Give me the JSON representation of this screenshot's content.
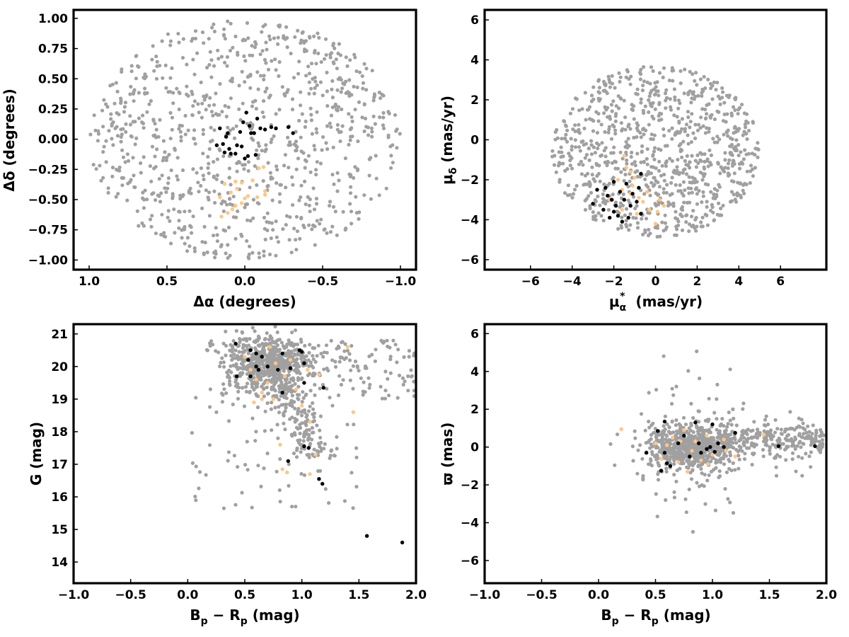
{
  "colors": {
    "field": "#a0a0a0",
    "black_group": "#000000",
    "orange_group": "#ffc685",
    "frame": "#000000"
  },
  "chart_data": [
    {
      "id": "sky",
      "type": "scatter",
      "xlabel": "Δα (degrees)",
      "ylabel": "Δδ (degrees)",
      "xlim": [
        1.1,
        -1.1
      ],
      "ylim": [
        -1.08,
        1.07
      ],
      "x_reversed": true,
      "xticks": [
        {
          "v": 1.0,
          "label": "1.0"
        },
        {
          "v": 0.5,
          "label": "0.5"
        },
        {
          "v": 0.0,
          "label": "0.0"
        },
        {
          "v": -0.5,
          "label": "−0.5"
        },
        {
          "v": -1.0,
          "label": "−1.0"
        }
      ],
      "yticks": [
        {
          "v": 1.0,
          "label": "1.00"
        },
        {
          "v": 0.75,
          "label": "0.75"
        },
        {
          "v": 0.5,
          "label": "0.50"
        },
        {
          "v": 0.25,
          "label": "0.25"
        },
        {
          "v": 0.0,
          "label": "0.00"
        },
        {
          "v": -0.25,
          "label": "−0.25"
        },
        {
          "v": -0.5,
          "label": "−0.50"
        },
        {
          "v": -0.75,
          "label": "−0.75"
        },
        {
          "v": -1.0,
          "label": "−1.00"
        }
      ],
      "field_distribution": {
        "shape": "disk",
        "center": [
          0.0,
          0.0
        ],
        "radius": [
          1.0,
          1.0
        ],
        "count": 900
      },
      "series": [
        {
          "group": "black",
          "points": [
            [
              0.16,
              0.09
            ],
            [
              0.12,
              0.02
            ],
            [
              0.14,
              -0.04
            ],
            [
              0.1,
              -0.08
            ],
            [
              0.13,
              -0.11
            ],
            [
              0.09,
              -0.12
            ],
            [
              0.05,
              -0.05
            ],
            [
              0.03,
              0.06
            ],
            [
              0.01,
              0.14
            ],
            [
              -0.01,
              0.22
            ],
            [
              -0.03,
              0.11
            ],
            [
              -0.06,
              0.05
            ],
            [
              -0.08,
              0.17
            ],
            [
              -0.1,
              0.09
            ],
            [
              -0.13,
              0.08
            ],
            [
              -0.17,
              0.1
            ],
            [
              -0.2,
              0.09
            ],
            [
              -0.28,
              0.1
            ],
            [
              -0.31,
              0.05
            ],
            [
              0.02,
              -0.06
            ],
            [
              -0.02,
              -0.14
            ],
            [
              0.0,
              -0.16
            ],
            [
              0.06,
              -0.12
            ],
            [
              0.18,
              -0.05
            ],
            [
              0.11,
              0.05
            ],
            [
              -0.04,
              0.05
            ],
            [
              -0.07,
              -0.13
            ]
          ]
        },
        {
          "group": "orange",
          "points": [
            [
              -0.12,
              -0.23
            ],
            [
              -0.05,
              -0.34
            ],
            [
              0.02,
              -0.36
            ],
            [
              0.05,
              -0.41
            ],
            [
              -0.13,
              -0.43
            ],
            [
              -0.13,
              -0.46
            ],
            [
              -0.08,
              -0.48
            ],
            [
              0.0,
              -0.49
            ],
            [
              0.02,
              -0.53
            ],
            [
              0.06,
              -0.55
            ],
            [
              0.08,
              -0.58
            ],
            [
              0.11,
              -0.61
            ],
            [
              0.15,
              -0.64
            ],
            [
              0.06,
              -0.35
            ],
            [
              0.13,
              -0.37
            ],
            [
              0.16,
              -0.48
            ],
            [
              -0.09,
              -0.24
            ],
            [
              0.09,
              -0.44
            ],
            [
              -0.02,
              -0.47
            ]
          ]
        }
      ]
    },
    {
      "id": "pm",
      "type": "scatter",
      "xlabel_main": "μ",
      "xlabel_sub": "α",
      "xlabel_sup": "*",
      "xlabel_rest": "(mas/yr)",
      "ylabel_main": "μ",
      "ylabel_sub": "δ",
      "ylabel_rest": "(mas/yr)",
      "xlim": [
        -8.2,
        8.2
      ],
      "ylim": [
        -6.5,
        6.5
      ],
      "xticks": [
        {
          "v": -6,
          "label": "−6"
        },
        {
          "v": -4,
          "label": "−4"
        },
        {
          "v": -2,
          "label": "−2"
        },
        {
          "v": 0,
          "label": "0"
        },
        {
          "v": 2,
          "label": "2"
        },
        {
          "v": 4,
          "label": "4"
        },
        {
          "v": 6,
          "label": "6"
        }
      ],
      "yticks": [
        {
          "v": 6,
          "label": "6"
        },
        {
          "v": 4,
          "label": "4"
        },
        {
          "v": 2,
          "label": "2"
        },
        {
          "v": 0,
          "label": "0"
        },
        {
          "v": -2,
          "label": "−2"
        },
        {
          "v": -4,
          "label": "−4"
        },
        {
          "v": -6,
          "label": "−6"
        }
      ],
      "field_distribution": {
        "shape": "disk",
        "center": [
          0.0,
          -0.6
        ],
        "radius": [
          5.0,
          4.3
        ],
        "count": 900
      },
      "series": [
        {
          "group": "black",
          "points": [
            [
              -3.0,
              -3.2
            ],
            [
              -2.8,
              -2.5
            ],
            [
              -2.5,
              -3.5
            ],
            [
              -2.3,
              -2.8
            ],
            [
              -2.2,
              -3.9
            ],
            [
              -2.0,
              -2.1
            ],
            [
              -2.0,
              -3.6
            ],
            [
              -1.8,
              -3.8
            ],
            [
              -1.7,
              -2.6
            ],
            [
              -1.6,
              -4.1
            ],
            [
              -1.5,
              -3.0
            ],
            [
              -1.4,
              -2.2
            ],
            [
              -1.2,
              -3.3
            ],
            [
              -1.1,
              -2.7
            ],
            [
              -0.9,
              -3.1
            ],
            [
              -0.8,
              -2.4
            ],
            [
              -0.7,
              -1.7
            ],
            [
              -0.7,
              -3.7
            ],
            [
              -2.4,
              -2.4
            ],
            [
              -1.9,
              -3.3
            ],
            [
              -1.3,
              -3.9
            ],
            [
              -2.1,
              -3.0
            ]
          ]
        },
        {
          "group": "orange",
          "points": [
            [
              -1.5,
              -0.8
            ],
            [
              -1.4,
              -1.4
            ],
            [
              -1.2,
              -1.6
            ],
            [
              -1.0,
              -1.9
            ],
            [
              -1.6,
              -2.5
            ],
            [
              -1.2,
              -2.7
            ],
            [
              -0.8,
              -2.9
            ],
            [
              -0.6,
              -3.1
            ],
            [
              -0.3,
              -3.5
            ],
            [
              0.0,
              -4.2
            ],
            [
              0.2,
              -3.0
            ],
            [
              0.4,
              -3.3
            ],
            [
              -0.9,
              -3.7
            ],
            [
              -1.8,
              -2.0
            ],
            [
              -1.6,
              -3.5
            ],
            [
              -2.2,
              -3.0
            ],
            [
              -0.4,
              -2.6
            ],
            [
              0.1,
              -3.6
            ],
            [
              -1.1,
              -2.3
            ]
          ]
        }
      ]
    },
    {
      "id": "cmd",
      "type": "scatter",
      "xlabel_main": "B",
      "xlabel_sub": "p",
      "xlabel_mid": " − R",
      "xlabel_sub2": "p",
      "xlabel_rest": " (mag)",
      "ylabel": "G (mag)",
      "xlim": [
        -1.0,
        2.0
      ],
      "ylim": [
        13.35,
        21.3
      ],
      "y_reversed": true,
      "xticks": [
        {
          "v": -1.0,
          "label": "−1.0"
        },
        {
          "v": -0.5,
          "label": "−0.5"
        },
        {
          "v": 0.0,
          "label": "0.0"
        },
        {
          "v": 0.5,
          "label": "0.5"
        },
        {
          "v": 1.0,
          "label": "1.0"
        },
        {
          "v": 1.5,
          "label": "1.5"
        },
        {
          "v": 2.0,
          "label": "2.0"
        }
      ],
      "yticks": [
        {
          "v": 21,
          "label": "21"
        },
        {
          "v": 20,
          "label": "20"
        },
        {
          "v": 19,
          "label": "19"
        },
        {
          "v": 18,
          "label": "18"
        },
        {
          "v": 17,
          "label": "17"
        },
        {
          "v": 16,
          "label": "16"
        },
        {
          "v": 15,
          "label": "15"
        },
        {
          "v": 14,
          "label": "14"
        }
      ],
      "field_distribution": {
        "shape": "cmd",
        "count": 1000
      },
      "series": [
        {
          "group": "black",
          "points": [
            [
              0.42,
              20.7
            ],
            [
              0.55,
              20.5
            ],
            [
              0.6,
              20.4
            ],
            [
              0.65,
              20.3
            ],
            [
              0.53,
              20.2
            ],
            [
              0.6,
              20.0
            ],
            [
              0.62,
              19.9
            ],
            [
              0.55,
              19.7
            ],
            [
              0.7,
              20.0
            ],
            [
              0.79,
              19.9
            ],
            [
              0.83,
              20.4
            ],
            [
              0.9,
              19.95
            ],
            [
              0.98,
              20.5
            ],
            [
              1.0,
              20.45
            ],
            [
              1.02,
              20.1
            ],
            [
              1.02,
              19.5
            ],
            [
              0.83,
              19.2
            ],
            [
              0.43,
              19.7
            ],
            [
              1.19,
              19.35
            ],
            [
              0.88,
              17.1
            ],
            [
              1.02,
              17.55
            ],
            [
              1.06,
              17.5
            ],
            [
              1.15,
              16.55
            ],
            [
              1.18,
              16.4
            ],
            [
              1.57,
              14.8
            ],
            [
              1.88,
              14.6
            ]
          ]
        },
        {
          "group": "orange",
          "points": [
            [
              0.5,
              20.3
            ],
            [
              0.55,
              19.9
            ],
            [
              0.6,
              19.6
            ],
            [
              0.65,
              19.2
            ],
            [
              0.7,
              19.5
            ],
            [
              0.72,
              20.6
            ],
            [
              0.75,
              19.0
            ],
            [
              0.77,
              20.1
            ],
            [
              0.85,
              19.7
            ],
            [
              0.9,
              20.2
            ],
            [
              0.95,
              19.3
            ],
            [
              1.0,
              18.8
            ],
            [
              1.05,
              19.9
            ],
            [
              1.15,
              19.75
            ],
            [
              1.4,
              20.6
            ],
            [
              1.45,
              18.6
            ],
            [
              0.81,
              17.6
            ],
            [
              0.83,
              16.85
            ],
            [
              0.87,
              16.75
            ],
            [
              1.07,
              16.7
            ],
            [
              1.07,
              18.3
            ],
            [
              1.12,
              17.3
            ],
            [
              0.65,
              19.0
            ],
            [
              0.58,
              18.9
            ]
          ]
        }
      ]
    },
    {
      "id": "plx",
      "type": "scatter",
      "xlabel_main": "B",
      "xlabel_sub": "p",
      "xlabel_mid": " − R",
      "xlabel_sub2": "p",
      "xlabel_rest": " (mag)",
      "ylabel": "ϖ (mas)",
      "xlim": [
        -1.0,
        2.0
      ],
      "ylim": [
        -7.2,
        6.5
      ],
      "xticks": [
        {
          "v": -1.0,
          "label": "−1.0"
        },
        {
          "v": -0.5,
          "label": "−0.5"
        },
        {
          "v": 0.0,
          "label": "0.0"
        },
        {
          "v": 0.5,
          "label": "0.5"
        },
        {
          "v": 1.0,
          "label": "1.0"
        },
        {
          "v": 1.5,
          "label": "1.5"
        },
        {
          "v": 2.0,
          "label": "2.0"
        }
      ],
      "yticks": [
        {
          "v": 6,
          "label": "6"
        },
        {
          "v": 4,
          "label": "4"
        },
        {
          "v": 2,
          "label": "2"
        },
        {
          "v": 0,
          "label": "0"
        },
        {
          "v": -2,
          "label": "−2"
        },
        {
          "v": -4,
          "label": "−4"
        },
        {
          "v": -6,
          "label": "−6"
        }
      ],
      "field_distribution": {
        "shape": "plx",
        "count": 1000
      },
      "series": [
        {
          "group": "black",
          "points": [
            [
              0.52,
              0.85
            ],
            [
              0.58,
              1.35
            ],
            [
              0.55,
              -1.25
            ],
            [
              0.6,
              -0.85
            ],
            [
              0.63,
              -1.0
            ],
            [
              0.58,
              -0.3
            ],
            [
              0.7,
              0.2
            ],
            [
              0.75,
              0.6
            ],
            [
              0.8,
              -0.5
            ],
            [
              0.85,
              1.3
            ],
            [
              0.9,
              -0.3
            ],
            [
              0.95,
              -0.1
            ],
            [
              0.98,
              0.0
            ],
            [
              1.0,
              1.2
            ],
            [
              1.02,
              -0.25
            ],
            [
              1.05,
              0.2
            ],
            [
              1.1,
              0.0
            ],
            [
              1.2,
              0.75
            ],
            [
              1.58,
              0.05
            ],
            [
              1.9,
              0.05
            ],
            [
              0.42,
              -0.3
            ],
            [
              0.88,
              0.2
            ]
          ]
        },
        {
          "group": "orange",
          "points": [
            [
              0.2,
              0.95
            ],
            [
              0.5,
              0.2
            ],
            [
              0.55,
              -0.6
            ],
            [
              0.6,
              0.1
            ],
            [
              0.65,
              0.5
            ],
            [
              0.7,
              -0.8
            ],
            [
              0.75,
              0.9
            ],
            [
              0.78,
              -1.3
            ],
            [
              0.85,
              0.3
            ],
            [
              0.9,
              -0.7
            ],
            [
              0.95,
              0.6
            ],
            [
              1.0,
              -0.4
            ],
            [
              1.1,
              0.4
            ],
            [
              1.12,
              -0.2
            ],
            [
              1.2,
              -0.5
            ],
            [
              1.45,
              0.65
            ],
            [
              0.72,
              0.3
            ],
            [
              0.82,
              -0.2
            ],
            [
              0.96,
              -0.9
            ]
          ]
        }
      ]
    }
  ]
}
